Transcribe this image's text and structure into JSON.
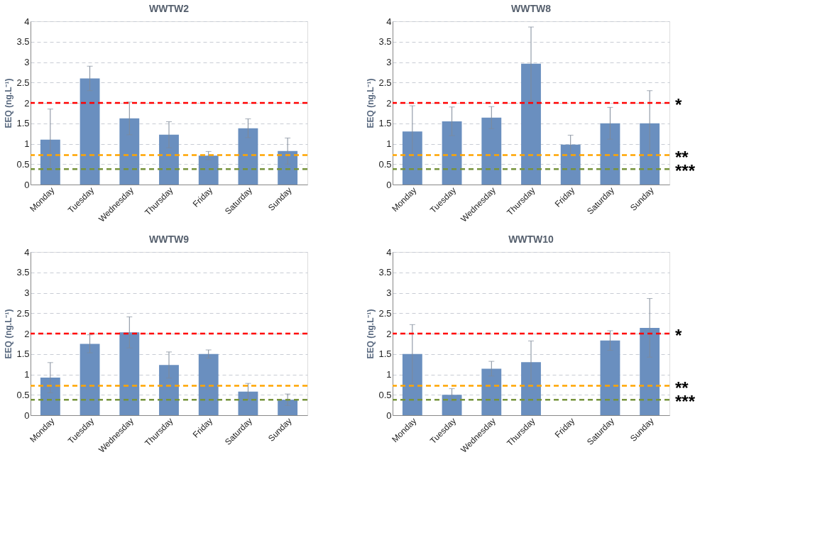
{
  "chart_data": [
    {
      "type": "bar",
      "title": "WWTW2",
      "ylabel": "EEQ (ng.L⁻¹)",
      "categories": [
        "Monday",
        "Tuesday",
        "Wednesday",
        "Thursday",
        "Friday",
        "Saturday",
        "Sunday"
      ],
      "values": [
        1.1,
        2.6,
        1.62,
        1.22,
        0.71,
        1.38,
        0.82
      ],
      "errors": [
        0.75,
        0.3,
        0.4,
        0.32,
        0.1,
        0.23,
        0.32
      ],
      "color": "#6a8fbf",
      "ylim": [
        0,
        4
      ],
      "yticks": [
        0,
        0.5,
        1,
        1.5,
        2,
        2.5,
        3,
        3.5,
        4
      ],
      "grid": "y",
      "line_style": "dashed",
      "ref_lines": [
        {
          "axis": "y",
          "value": 2,
          "label": null,
          "color": "#ff0000"
        },
        {
          "axis": "y",
          "value": 0.72,
          "label": null,
          "color": "#ffa500"
        },
        {
          "axis": "y",
          "value": 0.38,
          "label": null,
          "color": "#77933c"
        }
      ]
    },
    {
      "type": "bar",
      "title": "WWTW8",
      "ylabel": "EEQ (ng.L⁻¹)",
      "categories": [
        "Monday",
        "Tuesday",
        "Wednesday",
        "Thursday",
        "Friday",
        "Saturday",
        "Sunday"
      ],
      "values": [
        1.3,
        1.55,
        1.64,
        2.96,
        0.98,
        1.5,
        1.5
      ],
      "errors": [
        0.63,
        0.35,
        0.27,
        0.9,
        0.23,
        0.39,
        0.8
      ],
      "color": "#6a8fbf",
      "ylim": [
        0,
        4
      ],
      "yticks": [
        0,
        0.5,
        1,
        1.5,
        2,
        2.5,
        3,
        3.5,
        4
      ],
      "grid": "y",
      "line_style": "dashed",
      "ref_lines": [
        {
          "axis": "y",
          "value": 2,
          "label": "*",
          "color": "#ff0000"
        },
        {
          "axis": "y",
          "value": 0.72,
          "label": "**",
          "color": "#ffa500"
        },
        {
          "axis": "y",
          "value": 0.38,
          "label": "***",
          "color": "#77933c"
        }
      ]
    },
    {
      "type": "bar",
      "title": "WWTW9",
      "ylabel": "EEQ (ng.L⁻¹)",
      "categories": [
        "Monday",
        "Tuesday",
        "Wednesday",
        "Thursday",
        "Friday",
        "Saturday",
        "Sunday"
      ],
      "values": [
        0.92,
        1.75,
        2.03,
        1.23,
        1.5,
        0.58,
        0.38
      ],
      "errors": [
        0.37,
        0.22,
        0.38,
        0.32,
        0.1,
        0.2,
        0.14
      ],
      "color": "#6a8fbf",
      "ylim": [
        0,
        4
      ],
      "yticks": [
        0,
        0.5,
        1,
        1.5,
        2,
        2.5,
        3,
        3.5,
        4
      ],
      "grid": "y",
      "line_style": "dashed",
      "ref_lines": [
        {
          "axis": "y",
          "value": 2,
          "label": null,
          "color": "#ff0000"
        },
        {
          "axis": "y",
          "value": 0.72,
          "label": null,
          "color": "#ffa500"
        },
        {
          "axis": "y",
          "value": 0.38,
          "label": null,
          "color": "#77933c"
        }
      ]
    },
    {
      "type": "bar",
      "title": "WWTW10",
      "ylabel": "EEQ (ng.L⁻¹)",
      "categories": [
        "Monday",
        "Tuesday",
        "Wednesday",
        "Thursday",
        "Friday",
        "Saturday",
        "Sunday"
      ],
      "values": [
        1.5,
        0.5,
        1.14,
        1.3,
        null,
        1.83,
        2.14
      ],
      "errors": [
        0.72,
        0.15,
        0.18,
        0.52,
        null,
        0.24,
        0.72
      ],
      "color": "#6a8fbf",
      "ylim": [
        0,
        4
      ],
      "yticks": [
        0,
        0.5,
        1,
        1.5,
        2,
        2.5,
        3,
        3.5,
        4
      ],
      "grid": "y",
      "line_style": "dashed",
      "ref_lines": [
        {
          "axis": "y",
          "value": 2,
          "label": "*",
          "color": "#ff0000"
        },
        {
          "axis": "y",
          "value": 0.72,
          "label": "**",
          "color": "#ffa500"
        },
        {
          "axis": "y",
          "value": 0.38,
          "label": "***",
          "color": "#77933c"
        }
      ]
    }
  ]
}
